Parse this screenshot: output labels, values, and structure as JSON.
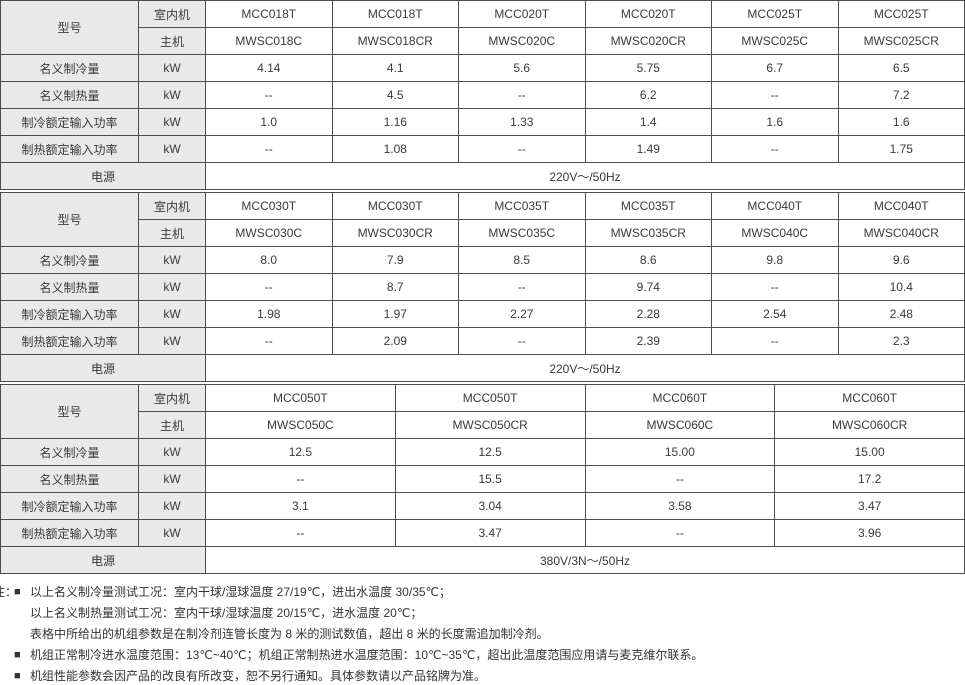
{
  "table": {
    "row_labels": {
      "model": "型号",
      "indoor": "室内机",
      "main": "主机",
      "cooling": "名义制冷量",
      "heating": "名义制热量",
      "cooling_input": "制冷额定输入功率",
      "heating_input": "制热额定输入功率",
      "power": "电源",
      "unit": "kW"
    },
    "sections": [
      {
        "indoor": [
          "MCC018T",
          "MCC018T",
          "MCC020T",
          "MCC020T",
          "MCC025T",
          "MCC025T"
        ],
        "main": [
          "MWSC018C",
          "MWSC018CR",
          "MWSC020C",
          "MWSC020CR",
          "MWSC025C",
          "MWSC025CR"
        ],
        "cooling": [
          "4.14",
          "4.1",
          "5.6",
          "5.75",
          "6.7",
          "6.5"
        ],
        "heating": [
          "--",
          "4.5",
          "--",
          "6.2",
          "--",
          "7.2"
        ],
        "cooling_input": [
          "1.0",
          "1.16",
          "1.33",
          "1.4",
          "1.6",
          "1.6"
        ],
        "heating_input": [
          "--",
          "1.08",
          "--",
          "1.49",
          "--",
          "1.75"
        ],
        "power": "220V～/50Hz"
      },
      {
        "indoor": [
          "MCC030T",
          "MCC030T",
          "MCC035T",
          "MCC035T",
          "MCC040T",
          "MCC040T"
        ],
        "main": [
          "MWSC030C",
          "MWSC030CR",
          "MWSC035C",
          "MWSC035CR",
          "MWSC040C",
          "MWSC040CR"
        ],
        "cooling": [
          "8.0",
          "7.9",
          "8.5",
          "8.6",
          "9.8",
          "9.6"
        ],
        "heating": [
          "--",
          "8.7",
          "--",
          "9.74",
          "--",
          "10.4"
        ],
        "cooling_input": [
          "1.98",
          "1.97",
          "2.27",
          "2.28",
          "2.54",
          "2.48"
        ],
        "heating_input": [
          "--",
          "2.09",
          "--",
          "2.39",
          "--",
          "2.3"
        ],
        "power": "220V～/50Hz"
      },
      {
        "indoor": [
          "MCC050T",
          "MCC050T",
          "MCC060T",
          "MCC060T"
        ],
        "main": [
          "MWSC050C",
          "MWSC050CR",
          "MWSC060C",
          "MWSC060CR"
        ],
        "cooling": [
          "12.5",
          "12.5",
          "15.00",
          "15.00"
        ],
        "heating": [
          "--",
          "15.5",
          "--",
          "17.2"
        ],
        "cooling_input": [
          "3.1",
          "3.04",
          "3.58",
          "3.47"
        ],
        "heating_input": [
          "--",
          "3.47",
          "--",
          "3.96"
        ],
        "power": "380V/3N～/50Hz"
      }
    ]
  },
  "notes": {
    "prefix": "注：",
    "bullet": "■",
    "lines": [
      {
        "text": "以上名义制冷量测试工况：室内干球/湿球温度 27/19℃，进出水温度 30/35℃；"
      },
      {
        "text": "以上名义制热量测试工况：室内干球/湿球温度 20/15℃，进水温度 20℃；"
      },
      {
        "text": "表格中所给出的机组参数是在制冷剂连管长度为 8 米的测试数值，超出 8 米的长度需追加制冷剂。"
      },
      {
        "text": "机组正常制冷进水温度范围：13℃~40℃；机组正常制热进水温度范围：10℃~35℃，超出此温度范围应用请与麦克维尔联系。"
      },
      {
        "text": "机组性能参数会因产品的改良有所改变，恕不另行通知。具体参数请以产品铭牌为准。"
      }
    ]
  },
  "colors": {
    "header_bg": "#e9e9e9",
    "border": "#4d4d4d",
    "text": "#333333"
  }
}
